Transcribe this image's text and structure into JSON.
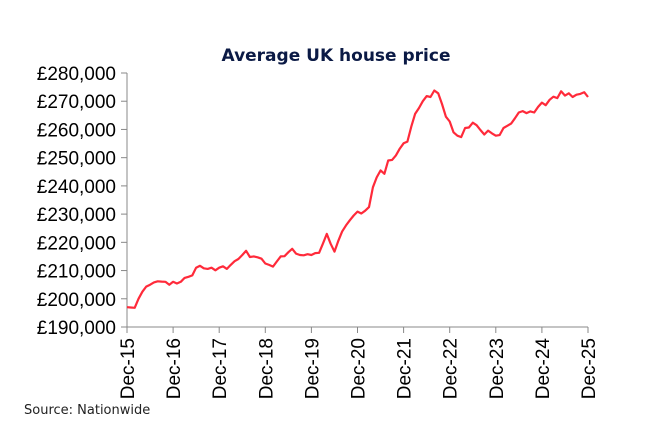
{
  "chart_data": {
    "type": "line",
    "title": "Average UK house price",
    "source": "Source: Nationwide",
    "xlabel": "",
    "ylabel": "",
    "x_tick_labels": [
      "Dec-15",
      "Dec-16",
      "Dec-17",
      "Dec-18",
      "Dec-19",
      "Dec-20",
      "Dec-21",
      "Dec-22",
      "Dec-23",
      "Dec-24",
      "Dec-25"
    ],
    "y_tick_labels": [
      "£190,000",
      "£200,000",
      "£210,000",
      "£220,000",
      "£230,000",
      "£240,000",
      "£250,000",
      "£260,000",
      "£270,000",
      "£280,000"
    ],
    "ylim": [
      190000,
      280000
    ],
    "x_range": [
      "Dec-15",
      "Dec-25"
    ],
    "x_frequency": "monthly",
    "grid": false,
    "legend": "none",
    "line_color": "#ff2a3a",
    "series": [
      {
        "values": [
          197000,
          196900,
          196800,
          200000,
          202500,
          204300,
          205000,
          205800,
          206200,
          206100,
          206000,
          205000,
          206000,
          205400,
          206000,
          207400,
          207800,
          208300,
          211000,
          211700,
          210800,
          210600,
          211000,
          210100,
          211000,
          211500,
          210600,
          212000,
          213300,
          214100,
          215500,
          217000,
          214800,
          215000,
          214700,
          214200,
          212500,
          212000,
          211400,
          213200,
          215000,
          215100,
          216500,
          217700,
          216000,
          215500,
          215400,
          215800,
          215500,
          216200,
          216300,
          219500,
          223000,
          219500,
          216700,
          220500,
          223800,
          226000,
          227800,
          229500,
          230900,
          230200,
          231200,
          232500,
          239500,
          243000,
          245500,
          244300,
          249000,
          249200,
          250800,
          253200,
          255100,
          255700,
          261000,
          265500,
          267600,
          270000,
          271800,
          271500,
          273800,
          272800,
          269000,
          264500,
          262800,
          259000,
          257800,
          257300,
          260500,
          260700,
          262400,
          261500,
          259800,
          258200,
          259600,
          258600,
          257800,
          258000,
          260500,
          261300,
          262100,
          264000,
          266000,
          266500,
          265800,
          266400,
          266000,
          268000,
          269500,
          268600,
          270500,
          271600,
          271100,
          273500,
          272000,
          272800,
          271500,
          272300,
          272600,
          273200,
          271500
        ]
      }
    ]
  }
}
